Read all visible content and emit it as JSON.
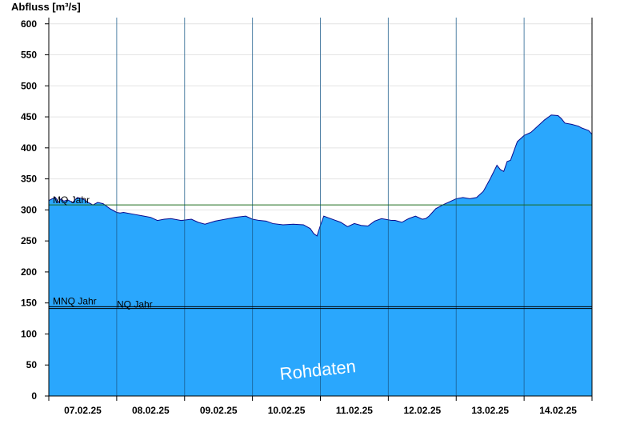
{
  "chart_data": {
    "type": "area",
    "ylabel": "Abfluss [m³/s]",
    "ylim": [
      0,
      610
    ],
    "yticks": [
      0,
      50,
      100,
      150,
      200,
      250,
      300,
      350,
      400,
      450,
      500,
      550,
      600
    ],
    "xlim_days": [
      0,
      8
    ],
    "x_tick_labels": [
      "07.02.25",
      "08.02.25",
      "09.02.25",
      "10.02.25",
      "11.02.25",
      "12.02.25",
      "13.02.25",
      "14.02.25"
    ],
    "watermark": "Rohdaten",
    "fill_color": "#2aa7fd",
    "line_color": "#0a0a8c",
    "reference_lines": [
      {
        "label": "MQ Jahr",
        "value": 308,
        "color": "#1a6a1a"
      },
      {
        "label": "MNQ Jahr",
        "value": 144,
        "color": "#000000"
      },
      {
        "label": "NQ Jahr",
        "value": 141,
        "color": "#000000"
      }
    ],
    "series": [
      {
        "x": [
          0,
          0.05,
          0.1,
          0.14,
          0.18,
          0.22,
          0.28,
          0.35,
          0.42,
          0.5,
          0.58,
          0.65,
          0.72,
          0.8,
          0.9,
          1.0,
          1.05,
          1.1,
          1.25,
          1.4,
          1.5,
          1.6,
          1.7,
          1.8,
          1.95,
          2.1,
          2.2,
          2.3,
          2.45,
          2.6,
          2.75,
          2.9,
          3.0,
          3.1,
          3.2,
          3.3,
          3.45,
          3.6,
          3.75,
          3.85,
          3.9,
          3.95,
          4.0,
          4.05,
          4.1,
          4.2,
          4.3,
          4.4,
          4.5,
          4.6,
          4.7,
          4.8,
          4.9,
          5.0,
          5.05,
          5.1,
          5.2,
          5.3,
          5.4,
          5.5,
          5.55,
          5.6,
          5.7,
          5.8,
          5.9,
          6.0,
          6.1,
          6.2,
          6.3,
          6.4,
          6.5,
          6.6,
          6.65,
          6.7,
          6.75,
          6.8,
          6.85,
          6.9,
          7.0,
          7.1,
          7.2,
          7.3,
          7.4,
          7.5,
          7.55,
          7.6,
          7.7,
          7.8,
          7.85,
          7.9,
          7.95,
          8.0
        ],
        "y": [
          315,
          318,
          320,
          312,
          318,
          314,
          316,
          312,
          320,
          318,
          312,
          308,
          312,
          310,
          302,
          296,
          295,
          296,
          293,
          290,
          288,
          283,
          285,
          286,
          283,
          285,
          280,
          277,
          282,
          285,
          288,
          290,
          285,
          283,
          282,
          278,
          276,
          277,
          276,
          270,
          262,
          258,
          275,
          290,
          288,
          284,
          280,
          273,
          278,
          275,
          274,
          282,
          286,
          284,
          283,
          283,
          280,
          286,
          290,
          285,
          286,
          290,
          302,
          308,
          313,
          318,
          320,
          318,
          320,
          330,
          350,
          372,
          365,
          362,
          378,
          380,
          395,
          410,
          420,
          425,
          435,
          445,
          453,
          452,
          447,
          440,
          438,
          435,
          432,
          430,
          428,
          422
        ]
      }
    ]
  }
}
